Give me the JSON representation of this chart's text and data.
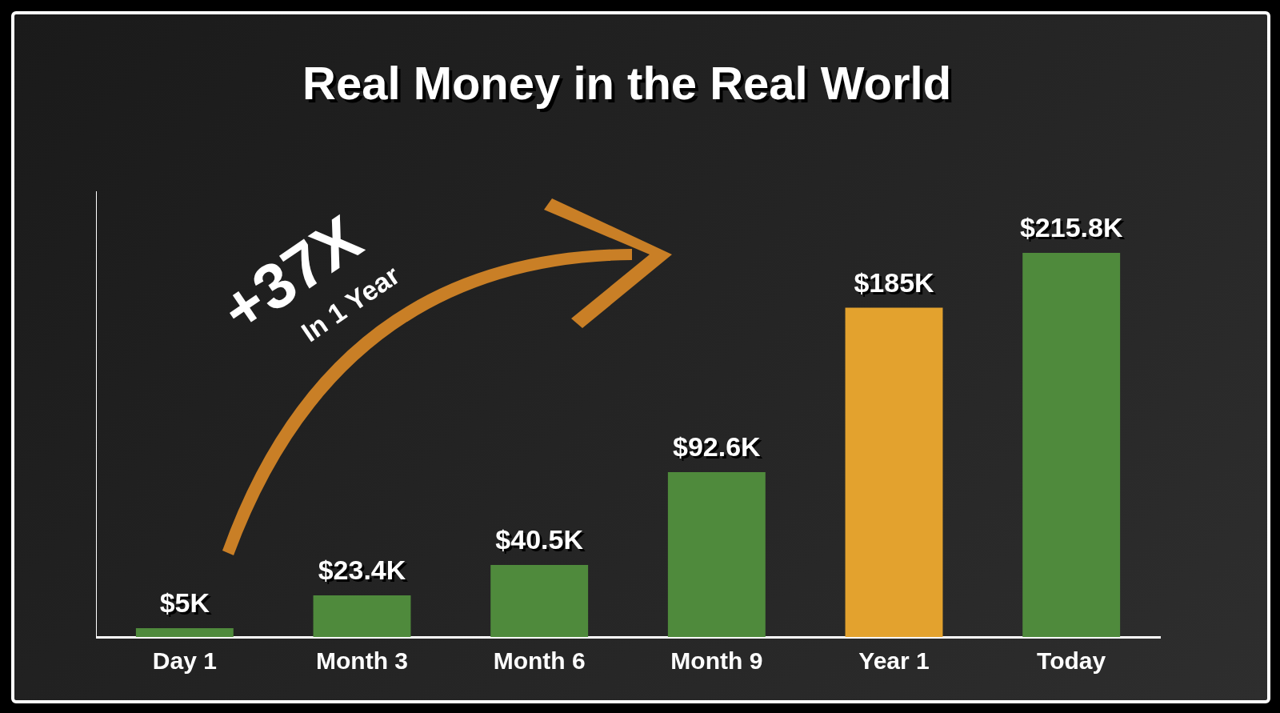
{
  "chart_data": {
    "type": "bar",
    "title": "Real Money in the Real World",
    "categories": [
      "Day 1",
      "Month 3",
      "Month 6",
      "Month 9",
      "Year 1",
      "Today"
    ],
    "values": [
      5,
      23.4,
      40.5,
      92.6,
      185,
      215.8
    ],
    "value_labels": [
      "$5K",
      "$23.4K",
      "$40.5K",
      "$92.6K",
      "$185K",
      "$215.8K"
    ],
    "colors": [
      "#4f8a3c",
      "#4f8a3c",
      "#4f8a3c",
      "#4f8a3c",
      "#e3a22e",
      "#4f8a3c"
    ],
    "annotations": [
      "+37X",
      "In 1 Year"
    ],
    "tick_labels": "x",
    "grid": false,
    "legend": false
  }
}
